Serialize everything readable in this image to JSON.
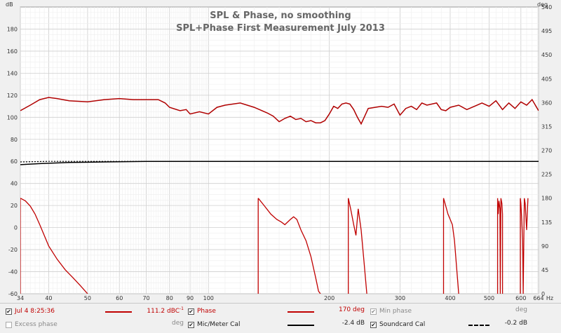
{
  "chart_data": {
    "type": "line",
    "title": "SPL & Phase, no smoothing",
    "subtitle": "SPL+Phase First Measurement July  2013",
    "x_unit": "Hz",
    "y_left_unit": "dB",
    "y_right_unit": "deg",
    "x_scale": "log",
    "xlim": [
      34,
      664
    ],
    "ylim_left": [
      -60,
      200
    ],
    "ylim_right": [
      0,
      540
    ],
    "grid": true,
    "x_ticks": [
      {
        "v": 34,
        "label": "34"
      },
      {
        "v": 40,
        "label": "40"
      },
      {
        "v": 50,
        "label": "50"
      },
      {
        "v": 60,
        "label": "60"
      },
      {
        "v": 70,
        "label": "70"
      },
      {
        "v": 80,
        "label": "80"
      },
      {
        "v": 90,
        "label": "90"
      },
      {
        "v": 100,
        "label": "100"
      },
      {
        "v": 200,
        "label": "200"
      },
      {
        "v": 300,
        "label": "300"
      },
      {
        "v": 400,
        "label": "400"
      },
      {
        "v": 500,
        "label": "500"
      },
      {
        "v": 600,
        "label": "600"
      },
      {
        "v": 664,
        "label": "664"
      }
    ],
    "y_left_ticks": [
      "-60",
      "-40",
      "-20",
      "0",
      "20",
      "40",
      "60",
      "80",
      "100",
      "120",
      "140",
      "160",
      "180"
    ],
    "y_right_ticks": [
      "0",
      "45",
      "90",
      "135",
      "180",
      "225",
      "270",
      "315",
      "360",
      "405",
      "450",
      "495",
      "540"
    ],
    "series": [
      {
        "name": "SPL",
        "color": "#b00000",
        "x": [
          34,
          36,
          38,
          40,
          42,
          45,
          50,
          55,
          60,
          65,
          70,
          75,
          78,
          80,
          85,
          88,
          90,
          95,
          100,
          105,
          110,
          120,
          130,
          140,
          145,
          150,
          155,
          160,
          165,
          170,
          175,
          180,
          185,
          190,
          195,
          200,
          205,
          210,
          215,
          220,
          225,
          230,
          235,
          240,
          245,
          250,
          260,
          270,
          280,
          290,
          300,
          310,
          320,
          330,
          340,
          350,
          370,
          380,
          390,
          400,
          420,
          440,
          460,
          480,
          500,
          520,
          540,
          560,
          580,
          600,
          620,
          640,
          664
        ],
        "y": [
          106,
          111,
          116,
          118,
          117,
          115,
          114,
          116,
          117,
          116,
          116,
          116,
          113,
          109,
          106,
          107,
          103,
          105,
          103,
          109,
          111,
          113,
          109,
          104,
          101,
          96,
          99,
          101,
          98,
          99,
          96,
          97,
          95,
          95,
          97,
          103,
          110,
          108,
          112,
          113,
          112,
          107,
          100,
          94,
          101,
          108,
          109,
          110,
          109,
          112,
          102,
          108,
          110,
          107,
          113,
          111,
          113,
          107,
          106,
          109,
          111,
          107,
          110,
          113,
          110,
          115,
          107,
          113,
          108,
          114,
          111,
          116,
          106
        ]
      },
      {
        "name": "Mic/Meter Cal",
        "color": "#000000",
        "style": "solid",
        "x": [
          34,
          38,
          45,
          55,
          70,
          100,
          200,
          400,
          664
        ],
        "y": [
          57,
          58,
          59,
          59.5,
          60,
          60,
          60,
          60,
          60
        ]
      },
      {
        "name": "Soundcard Cal",
        "color": "#000000",
        "style": "dashed",
        "x": [
          34,
          40,
          60,
          100,
          200,
          400,
          664
        ],
        "y": [
          59.5,
          60,
          60,
          60,
          60,
          60,
          60
        ]
      },
      {
        "name": "Phase",
        "color": "#c00000",
        "axis": "right",
        "segments": [
          {
            "x": [
              34,
              34
            ],
            "y": [
              0,
              180
            ]
          },
          {
            "x": [
              34,
              35,
              36,
              37,
              38,
              39,
              40,
              42,
              44,
              46,
              48,
              50
            ],
            "y": [
              180,
              175,
              165,
              150,
              130,
              110,
              90,
              65,
              45,
              30,
              15,
              0
            ]
          },
          {
            "x": [
              133,
              133
            ],
            "y": [
              0,
              180
            ]
          },
          {
            "x": [
              133,
              138,
              143,
              148,
              152,
              155,
              160,
              163,
              166,
              170,
              175,
              180,
              185,
              188,
              190
            ],
            "y": [
              180,
              165,
              150,
              140,
              135,
              130,
              140,
              145,
              140,
              120,
              100,
              70,
              30,
              5,
              0
            ]
          },
          {
            "x": [
              223,
              223
            ],
            "y": [
              0,
              180
            ]
          },
          {
            "x": [
              223,
              226,
              230,
              233,
              236,
              240,
              244,
              248
            ],
            "y": [
              180,
              160,
              130,
              110,
              160,
              120,
              60,
              0
            ]
          },
          {
            "x": [
              385,
              385
            ],
            "y": [
              0,
              180
            ]
          },
          {
            "x": [
              385,
              390,
              395,
              400,
              405,
              410,
              415,
              420
            ],
            "y": [
              180,
              165,
              150,
              140,
              130,
              100,
              50,
              0
            ]
          },
          {
            "x": [
              525,
              525,
              527,
              529,
              532,
              533,
              535,
              538,
              540,
              540
            ],
            "y": [
              0,
              180,
              150,
              175,
              160,
              0,
              180,
              170,
              150,
              0
            ]
          },
          {
            "x": [
              598,
              598,
              600,
              603,
              606,
              608,
              612,
              615,
              618,
              620,
              623,
              625
            ],
            "y": [
              0,
              180,
              170,
              140,
              100,
              0,
              180,
              170,
              140,
              120,
              160,
              180
            ]
          }
        ]
      }
    ]
  },
  "legend": {
    "row1": [
      {
        "checked": true,
        "label": "Jul 4 8:25:36",
        "value": "111.2 dBC",
        "value_sup": "-1",
        "color": "#c00000"
      },
      {
        "checked": true,
        "label": "Phase",
        "value": "170 deg",
        "color": "#c00000"
      },
      {
        "checked": true,
        "disabled": true,
        "label": "Min phase",
        "value": "deg"
      }
    ],
    "row2": [
      {
        "checked": false,
        "disabled": true,
        "label": "Excess phase",
        "value": "deg"
      },
      {
        "checked": true,
        "label": "Mic/Meter Cal",
        "value": "-2.4 dB",
        "color": "#000000"
      },
      {
        "checked": true,
        "label": "Soundcard Cal",
        "value": "-0.2 dB",
        "color": "#000000"
      }
    ]
  }
}
